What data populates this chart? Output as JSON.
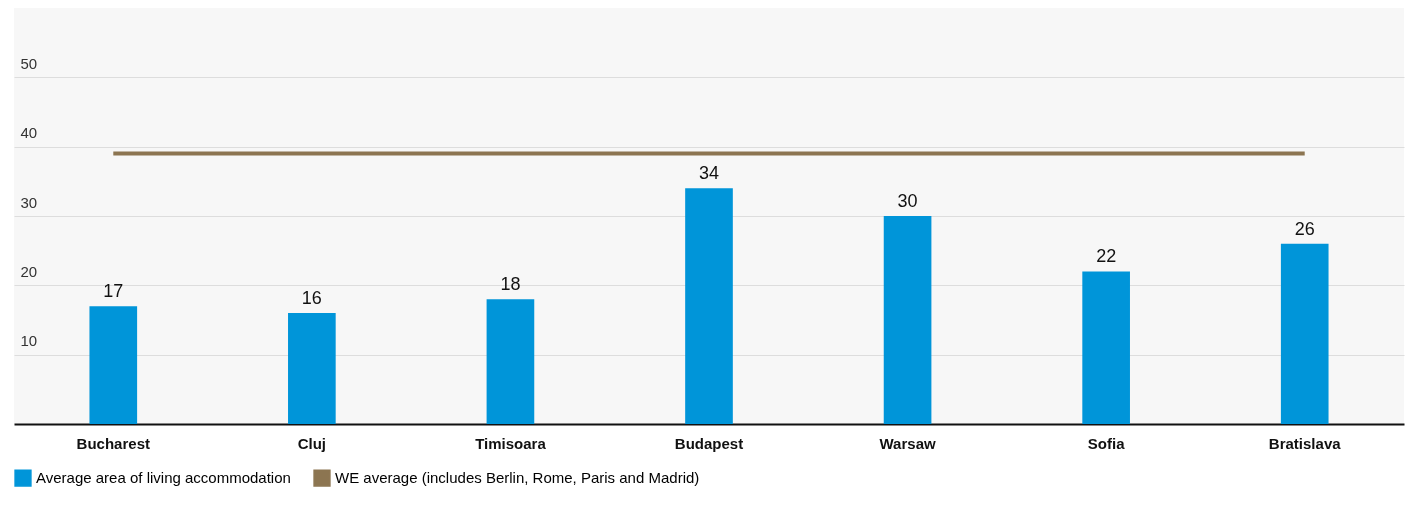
{
  "chart_data": {
    "type": "bar",
    "categories": [
      "Bucharest",
      "Cluj",
      "Timisoara",
      "Budapest",
      "Warsaw",
      "Sofia",
      "Bratislava"
    ],
    "series": [
      {
        "name": "Average area of living accommodation",
        "color": "#0095d9",
        "values": [
          17,
          16,
          18,
          34,
          30,
          22,
          26
        ],
        "value_labels": [
          "17",
          "16",
          "18",
          "34",
          "30",
          "22",
          "26"
        ]
      },
      {
        "name": "WE average (includes Berlin, Rome, Paris and Madrid)",
        "color": "#8c7551",
        "type": "line",
        "values": [
          39,
          39,
          39,
          39,
          39,
          39,
          39
        ]
      }
    ],
    "ylim": [
      0,
      60
    ],
    "yticks": [
      10,
      20,
      30,
      40,
      50
    ],
    "grid": "y",
    "legend": "bottom"
  }
}
